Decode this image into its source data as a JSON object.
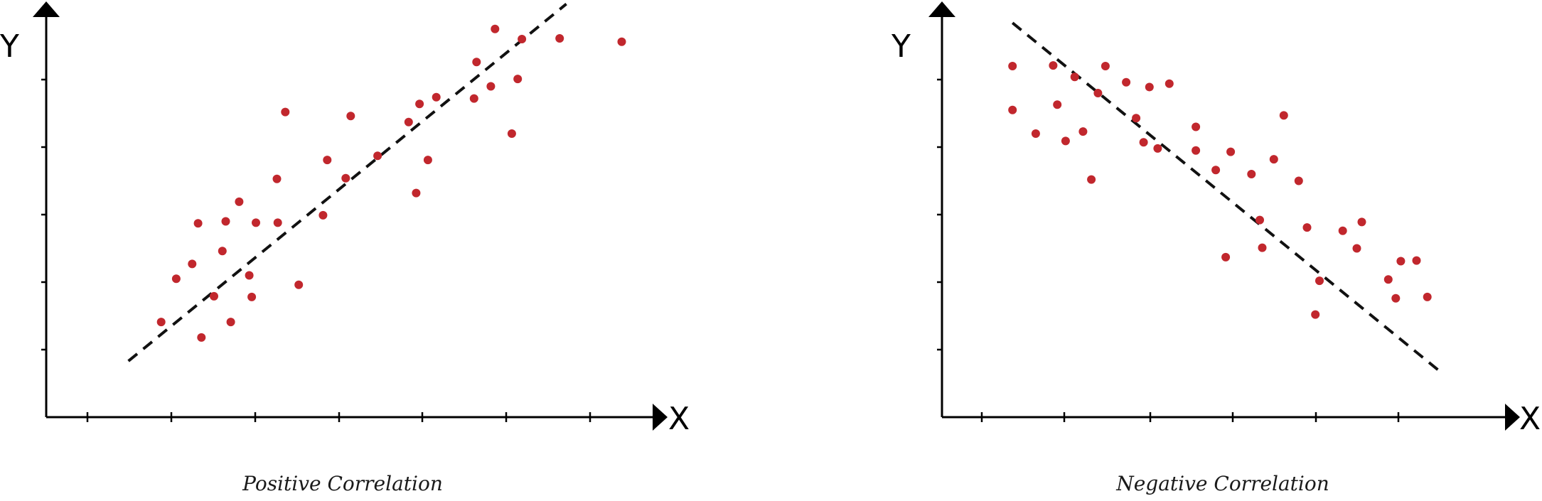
{
  "chart_data": [
    {
      "type": "scatter",
      "title": "Positive Correlation",
      "xlabel": "X",
      "ylabel": "Y",
      "xlim": [
        0,
        7.5
      ],
      "ylim": [
        0,
        6
      ],
      "grid": false,
      "legend": "none",
      "colors": {
        "points": "#c1272d",
        "trend": "#111111"
      },
      "x": [
        1.37,
        1.55,
        1.74,
        1.81,
        1.85,
        2.0,
        2.1,
        2.14,
        2.2,
        2.3,
        2.42,
        2.45,
        2.5,
        2.75,
        2.76,
        2.85,
        3.01,
        3.3,
        3.35,
        3.57,
        3.63,
        3.95,
        4.32,
        4.41,
        4.45,
        4.55,
        4.65,
        5.1,
        5.13,
        5.3,
        5.35,
        5.55,
        5.62,
        5.67,
        6.12,
        6.86
      ],
      "y": [
        1.41,
        2.05,
        2.27,
        2.87,
        1.18,
        1.79,
        2.46,
        2.9,
        1.41,
        3.19,
        2.1,
        1.78,
        2.88,
        3.53,
        2.88,
        4.52,
        1.96,
        2.99,
        3.81,
        3.54,
        4.46,
        3.87,
        4.37,
        3.32,
        4.64,
        3.81,
        4.74,
        4.72,
        5.26,
        4.9,
        5.75,
        4.2,
        5.01,
        5.6,
        5.61,
        5.56
      ],
      "trend_line": {
        "from": [
          0.98,
          0.83
        ],
        "to": [
          6.2,
          6.12
        ]
      }
    },
    {
      "type": "scatter",
      "title": "Negative Correlation",
      "xlabel": "X",
      "ylabel": "Y",
      "xlim": [
        0,
        7.0
      ],
      "ylim": [
        0,
        6
      ],
      "grid": false,
      "legend": "none",
      "colors": {
        "points": "#c1272d",
        "trend": "#111111"
      },
      "x": [
        0.85,
        0.85,
        1.13,
        1.34,
        1.39,
        1.49,
        1.6,
        1.7,
        1.8,
        1.88,
        1.97,
        2.22,
        2.34,
        2.43,
        2.5,
        2.6,
        2.74,
        3.06,
        3.06,
        3.3,
        3.42,
        3.48,
        3.73,
        3.83,
        3.86,
        4.0,
        4.12,
        4.3,
        4.4,
        4.5,
        4.55,
        4.83,
        5.0,
        5.06,
        5.38,
        5.47,
        5.53,
        5.72,
        5.85
      ],
      "y": [
        5.2,
        4.55,
        4.2,
        5.21,
        4.63,
        4.09,
        5.04,
        4.23,
        3.52,
        4.8,
        5.2,
        4.96,
        4.43,
        4.07,
        4.89,
        3.98,
        4.94,
        4.3,
        3.95,
        3.66,
        2.37,
        3.93,
        3.6,
        2.92,
        2.51,
        3.82,
        4.47,
        3.5,
        2.81,
        1.52,
        2.02,
        2.76,
        2.5,
        2.89,
        2.04,
        1.76,
        2.31,
        2.32,
        1.78
      ],
      "trend_line": {
        "from": [
          0.85,
          5.84
        ],
        "to": [
          6.03,
          0.65
        ]
      }
    }
  ]
}
